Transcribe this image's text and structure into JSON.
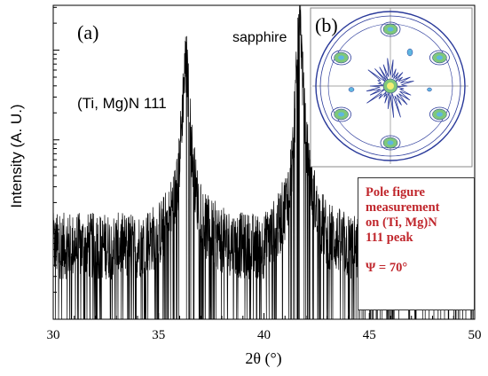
{
  "chart_data": [
    {
      "type": "line",
      "panel_label": "(a)",
      "xlabel": "2θ (°)",
      "ylabel": "Intensity (A. U.)",
      "xlim": [
        30,
        50
      ],
      "ylim_log10": [
        0,
        3.5
      ],
      "y_scale": "log",
      "x_ticks": [
        30,
        35,
        40,
        45,
        50
      ],
      "x_tick_labels": [
        "30",
        "35",
        "40",
        "45",
        "50"
      ],
      "grid": false,
      "series": [
        {
          "x": [
            30.0,
            32.0,
            34.0,
            35.0,
            35.5,
            35.8,
            36.0,
            36.15,
            36.25,
            36.3,
            36.35,
            36.45,
            36.6,
            36.8,
            37.2,
            38.0,
            39.0,
            40.0,
            40.7,
            41.1,
            41.35,
            41.5,
            41.6,
            41.68,
            41.72,
            41.78,
            41.9,
            42.1,
            42.5,
            43.0,
            44.0,
            45.0,
            47.0,
            50.0
          ],
          "y": [
            6,
            6,
            6,
            8,
            12,
            22,
            60,
            250,
            600,
            680,
            560,
            200,
            60,
            22,
            10,
            7,
            6,
            6,
            10,
            20,
            60,
            250,
            1200,
            3000,
            3200,
            1000,
            180,
            50,
            14,
            8,
            6,
            5,
            5,
            5
          ],
          "style": "noisy trace, black"
        }
      ],
      "annotations": [
        {
          "text": "(Ti, Mg)N 111",
          "x": 36.3
        },
        {
          "text": "sapphire",
          "x": 41.7
        }
      ]
    },
    {
      "type": "pole_figure",
      "panel_label": "(b)",
      "description_visible": true
    }
  ],
  "note": {
    "lines": [
      "Pole figure",
      "measurement",
      "on (Ti, Mg)N",
      "111 peak"
    ],
    "psi": "Ψ = 70°"
  },
  "colors": {
    "trace": "#000000",
    "note_text": "#c0262c",
    "pole_contour": "#2a3a9a",
    "pole_fill_outer": "#7fc87a",
    "pole_fill_inner": "#f2ee74",
    "pole_fill_mid": "#5fb6e0"
  }
}
